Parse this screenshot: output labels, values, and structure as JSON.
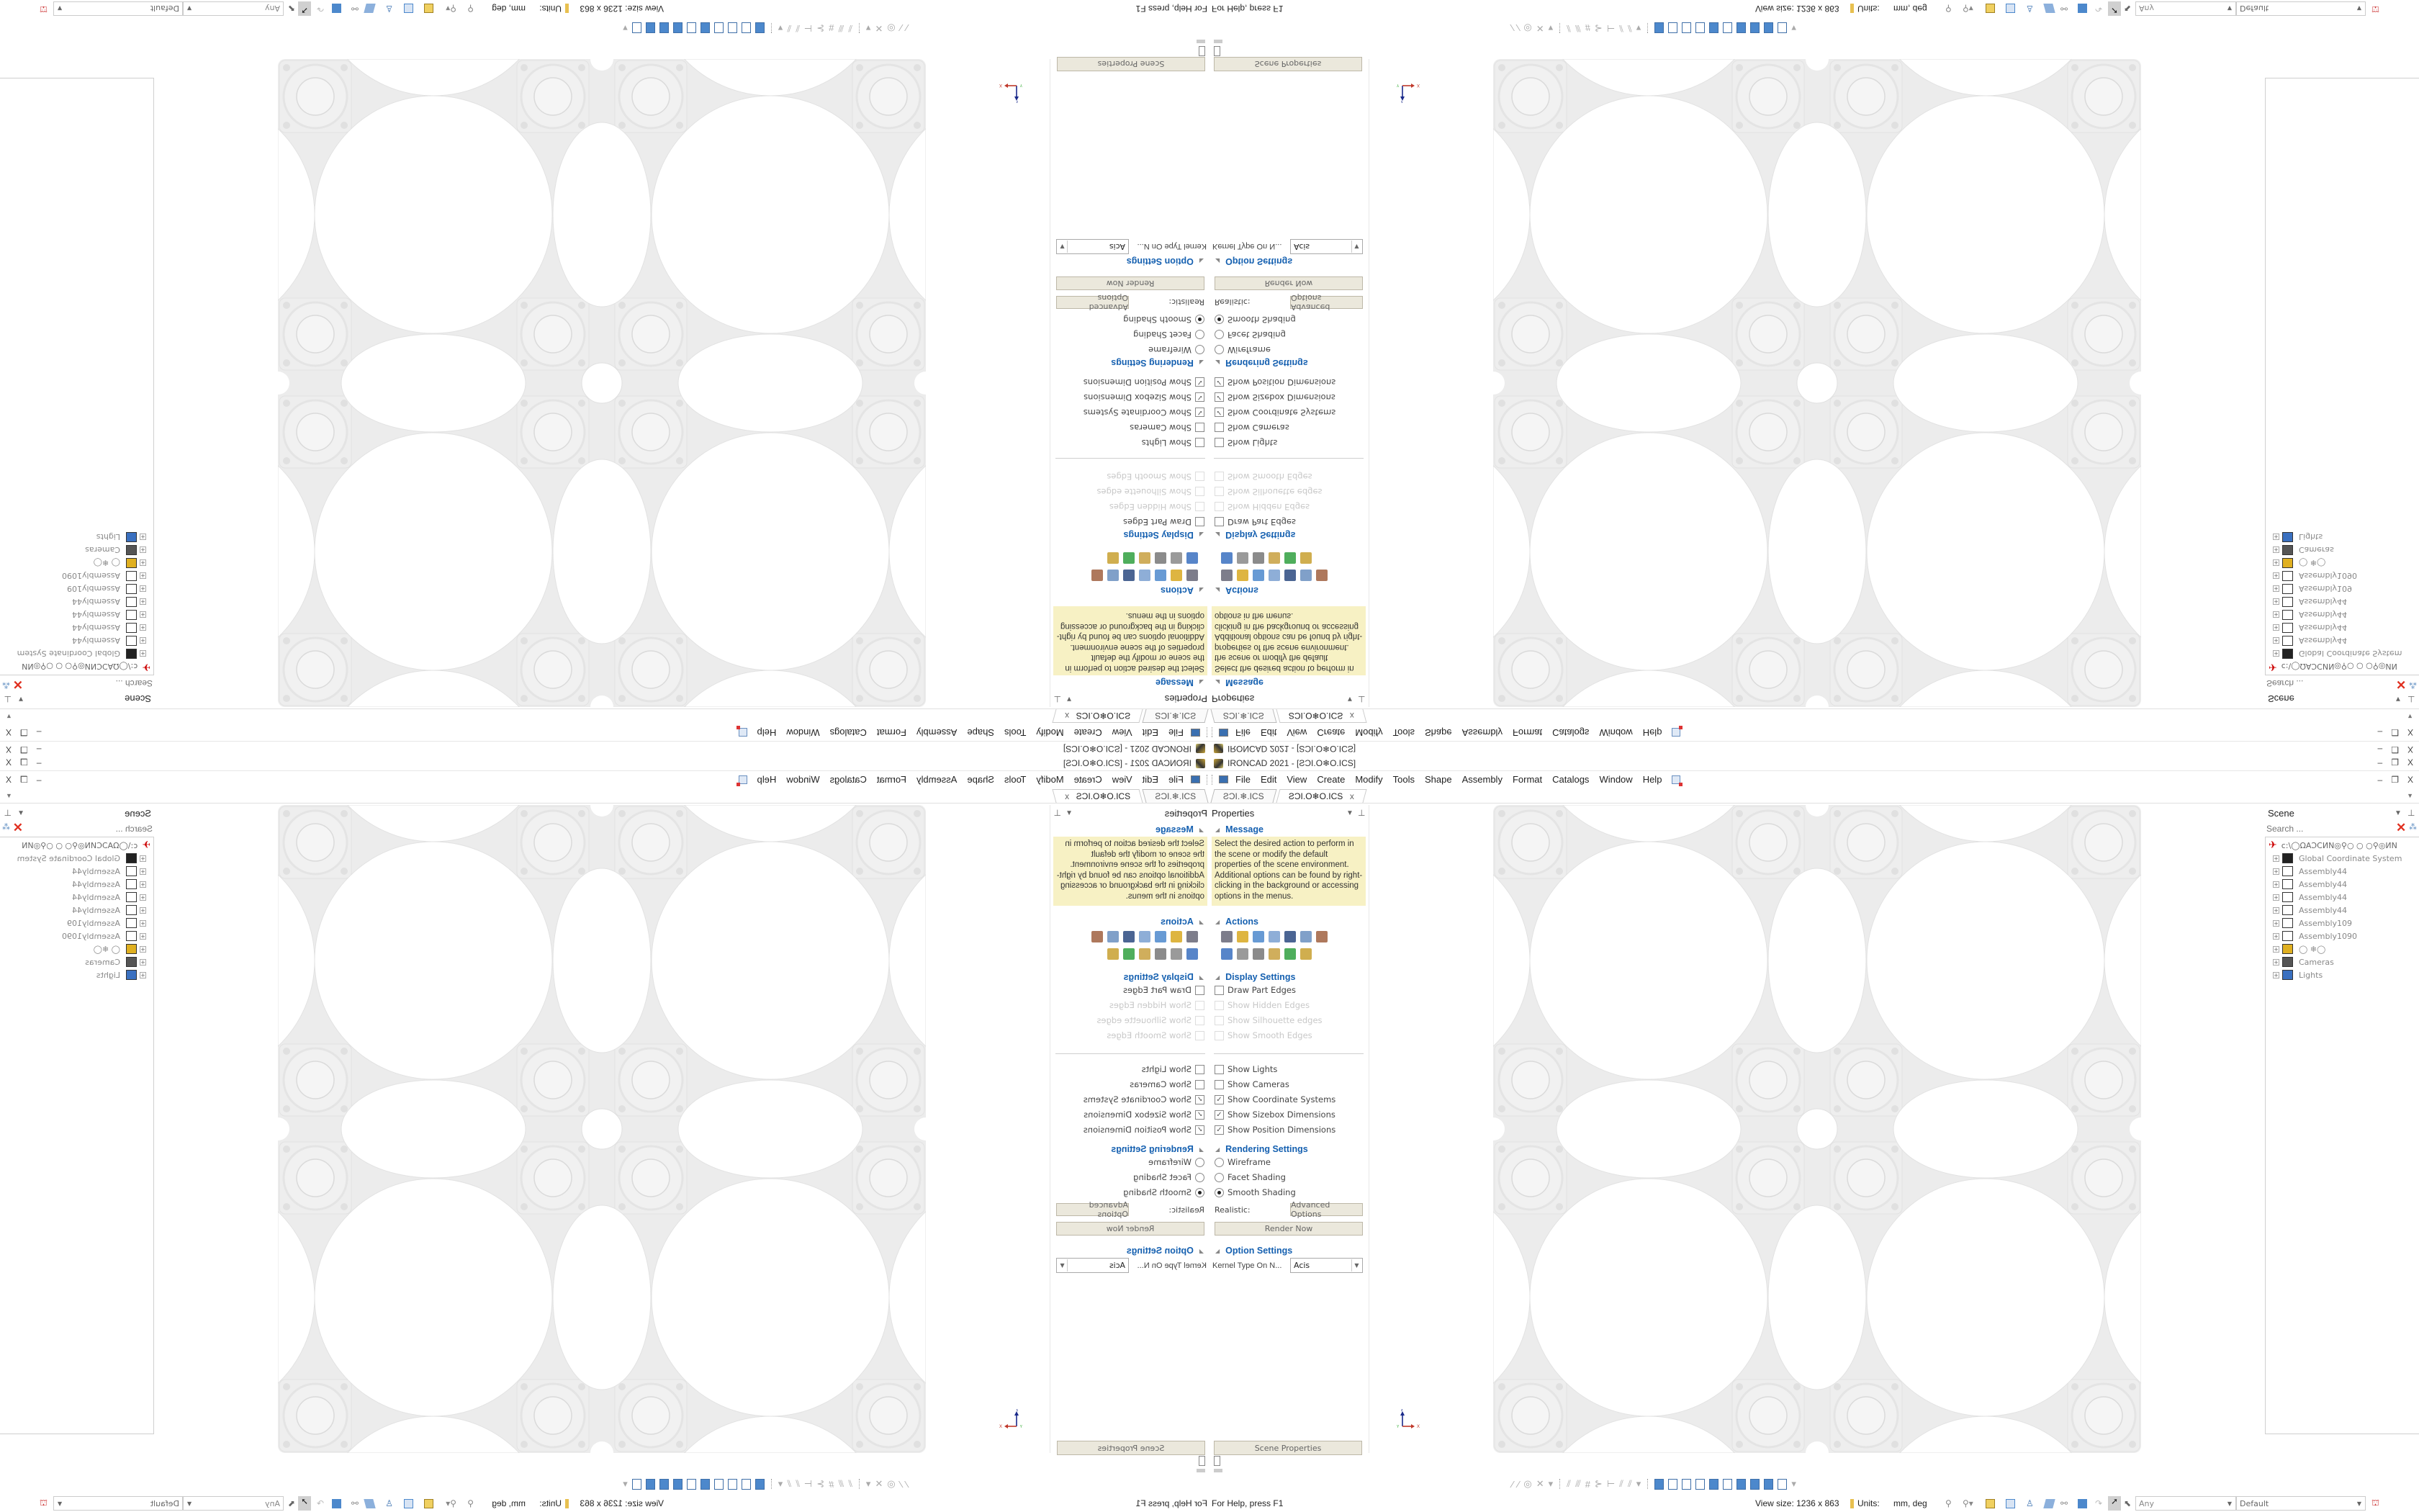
{
  "window": {
    "title": "IRONCAD 2021 - [ƧƆI.O❄O.ICS]",
    "controls": {
      "minimize": "–",
      "restore": "❐",
      "close": "X"
    },
    "doc_controls": {
      "minimize": "–",
      "restore": "❐",
      "close": "X"
    }
  },
  "menu": {
    "items": [
      "File",
      "Edit",
      "View",
      "Create",
      "Modify",
      "Tools",
      "Shape",
      "Assembly",
      "Format",
      "Catalogs",
      "Window",
      "Help"
    ]
  },
  "tabs": [
    {
      "label": "ƧƆI.❄.ICS",
      "active": false
    },
    {
      "label": "ƧƆI.O❄O.ICS",
      "active": true
    }
  ],
  "tab_close": "x",
  "properties": {
    "title": "Properties",
    "message": {
      "heading": "Message",
      "text": "Select the desired action to perform in the scene or modify the default properties of the scene environment. Additional options can be found by right-clicking in the background or accessing options in the menus."
    },
    "actions": {
      "heading": "Actions",
      "icons": [
        "scene-list-icon",
        "sizebox-icon",
        "rotate-part-icon",
        "shape-icon",
        "shield-icon",
        "edit-sketch-icon",
        "graph-icon",
        "camera-box-icon",
        "gears-icon",
        "calendar-table-icon",
        "assembly-icon",
        "axis-icon",
        "stack-icon"
      ]
    },
    "display": {
      "heading": "Display Settings",
      "edges": [
        {
          "label": "Draw Part Edges",
          "checked": false,
          "enabled": true
        },
        {
          "label": "Show Hidden Edges",
          "checked": false,
          "enabled": false
        },
        {
          "label": "Show Silhouette edges",
          "checked": false,
          "enabled": false
        },
        {
          "label": "Show Smooth Edges",
          "checked": false,
          "enabled": false
        }
      ],
      "show": [
        {
          "label": "Show Lights",
          "checked": false
        },
        {
          "label": "Show Cameras",
          "checked": false
        },
        {
          "label": "Show Coordinate Systems",
          "checked": true
        },
        {
          "label": "Show Sizebox Dimensions",
          "checked": true
        },
        {
          "label": "Show Position Dimensions",
          "checked": true
        }
      ]
    },
    "rendering": {
      "heading": "Rendering Settings",
      "modes": [
        {
          "label": "Wireframe",
          "selected": false
        },
        {
          "label": "Facet Shading",
          "selected": false
        },
        {
          "label": "Smooth Shading",
          "selected": true
        }
      ],
      "realistic_label": "Realistic:",
      "advanced_button": "Advanced Options",
      "render_button": "Render Now"
    },
    "options": {
      "heading": "Option Settings",
      "kernel_label": "Kernel Type On N...",
      "kernel_value": "Acis"
    },
    "scene_properties_button": "Scene Properties"
  },
  "scene": {
    "title": "Scene",
    "search_placeholder": "Search ...",
    "root": "c:\\◯ΩΑƆϹИN◎⚲○ ○ ○⚲◎ИN",
    "items": [
      {
        "label": "Global Coordinate System",
        "icon": "coordinate-system-icon"
      },
      {
        "label": "Assembly44",
        "icon": "assembly-icon"
      },
      {
        "label": "Assembly44",
        "icon": "assembly-icon"
      },
      {
        "label": "Assembly44",
        "icon": "assembly-icon"
      },
      {
        "label": "Assembly44",
        "icon": "assembly-icon"
      },
      {
        "label": "Assembly109",
        "icon": "assembly-icon"
      },
      {
        "label": "Assembly1090",
        "icon": "assembly-icon"
      },
      {
        "label": "◯ ❄◯",
        "icon": "part-icon"
      },
      {
        "label": "Cameras",
        "icon": "camera-icon"
      },
      {
        "label": "Lights",
        "icon": "light-icon"
      }
    ]
  },
  "viewport": {
    "triad": {
      "z": "z",
      "x": "X",
      "y": "Y"
    }
  },
  "status": {
    "help": "For Help, press F1",
    "view_size": "View size: 1236 x 863",
    "units_label": "Units:",
    "units_value": "mm, deg",
    "filter_value": "Any",
    "style_value": "Default"
  },
  "colors": {
    "heading": "#1560b0",
    "message_bg": "#f7f1c4",
    "button_bg": "#ebe8dc",
    "model": "#ebebeb",
    "view_cube": "#4c88cc"
  }
}
